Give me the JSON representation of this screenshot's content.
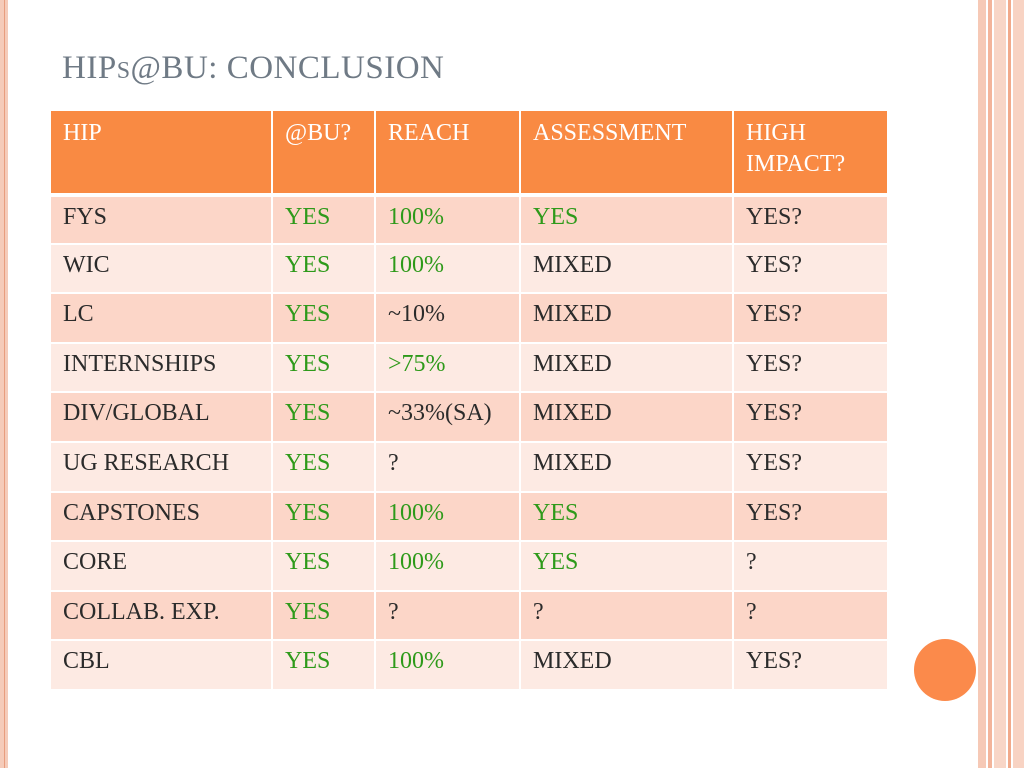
{
  "slide": {
    "title_prefix": "HIP",
    "title_small": "S",
    "title_suffix": "@BU: CONCLUSION"
  },
  "colors": {
    "header_bg": "#f98a43",
    "row_dark": "#fcd6c8",
    "row_light": "#fdeae3",
    "green_text": "#2e9a1a",
    "accent_circle": "#fb8a4b"
  },
  "table": {
    "headers": [
      "HIP",
      "@BU?",
      "REACH",
      "ASSESSMENT",
      "HIGH IMPACT?"
    ],
    "rows": [
      [
        "FYS",
        "YES",
        "100%",
        "YES",
        "YES?"
      ],
      [
        "WIC",
        "YES",
        "100%",
        "MIXED",
        "YES?"
      ],
      [
        "LC",
        "YES",
        "~10%",
        "MIXED",
        "YES?"
      ],
      [
        "INTERNSHIPS",
        "YES",
        ">75%",
        "MIXED",
        "YES?"
      ],
      [
        "DIV/GLOBAL",
        "YES",
        "~33%(SA)",
        "MIXED",
        "YES?"
      ],
      [
        "UG RESEARCH",
        "YES",
        "?",
        "MIXED",
        "YES?"
      ],
      [
        "CAPSTONES",
        "YES",
        "100%",
        "YES",
        "YES?"
      ],
      [
        "CORE",
        "YES",
        "100%",
        "YES",
        "?"
      ],
      [
        "COLLAB. EXP.",
        "YES",
        "?",
        "?",
        "?"
      ],
      [
        "CBL",
        "YES",
        "100%",
        "MIXED",
        "YES?"
      ]
    ],
    "green_cells": [
      [
        0,
        1
      ],
      [
        0,
        2
      ],
      [
        0,
        3
      ],
      [
        1,
        1
      ],
      [
        1,
        2
      ],
      [
        2,
        1
      ],
      [
        3,
        1
      ],
      [
        3,
        2
      ],
      [
        4,
        1
      ],
      [
        5,
        1
      ],
      [
        6,
        1
      ],
      [
        6,
        2
      ],
      [
        6,
        3
      ],
      [
        7,
        1
      ],
      [
        7,
        2
      ],
      [
        7,
        3
      ],
      [
        8,
        1
      ],
      [
        9,
        1
      ],
      [
        9,
        2
      ]
    ]
  }
}
